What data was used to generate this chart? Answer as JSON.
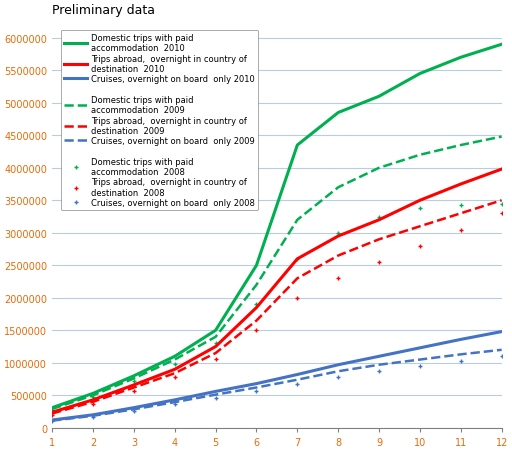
{
  "title": "Preliminary data",
  "x": [
    1,
    2,
    3,
    4,
    5,
    6,
    7,
    8,
    9,
    10,
    11,
    12
  ],
  "green_solid": [
    310000,
    530000,
    800000,
    1100000,
    1500000,
    2500000,
    4350000,
    4850000,
    5100000,
    5450000,
    5700000,
    5900000
  ],
  "red_solid": [
    240000,
    430000,
    660000,
    900000,
    1250000,
    1850000,
    2600000,
    2950000,
    3200000,
    3500000,
    3750000,
    3980000
  ],
  "blue_solid": [
    120000,
    200000,
    310000,
    430000,
    560000,
    680000,
    820000,
    970000,
    1100000,
    1230000,
    1360000,
    1480000
  ],
  "green_dash": [
    290000,
    500000,
    760000,
    1050000,
    1400000,
    2200000,
    3200000,
    3700000,
    4000000,
    4200000,
    4350000,
    4480000
  ],
  "red_dash": [
    220000,
    400000,
    620000,
    840000,
    1150000,
    1650000,
    2300000,
    2650000,
    2900000,
    3100000,
    3300000,
    3500000
  ],
  "blue_dash": [
    110000,
    185000,
    285000,
    395000,
    510000,
    620000,
    740000,
    870000,
    970000,
    1050000,
    1130000,
    1200000
  ],
  "green_dot": [
    270000,
    470000,
    720000,
    980000,
    1300000,
    1900000,
    2600000,
    3000000,
    3250000,
    3380000,
    3420000,
    3450000
  ],
  "red_dot": [
    200000,
    370000,
    570000,
    780000,
    1060000,
    1500000,
    2000000,
    2300000,
    2550000,
    2800000,
    3050000,
    3300000
  ],
  "blue_dot": [
    100000,
    170000,
    260000,
    360000,
    465000,
    565000,
    670000,
    780000,
    870000,
    950000,
    1030000,
    1110000
  ],
  "ylim": [
    0,
    6250000
  ],
  "yticks": [
    0,
    500000,
    1000000,
    1500000,
    2000000,
    2500000,
    3000000,
    3500000,
    4000000,
    4500000,
    5000000,
    5500000,
    6000000
  ],
  "background_color": "#ffffff",
  "grid_color": "#b8cce4",
  "legend_labels_2010": [
    "Domestic trips with paid\naccommodation  2010",
    "Trips abroad,  overnight in country of\ndestination  2010",
    "Cruises, overnight on board  only 2010"
  ],
  "legend_labels_2009": [
    "Domestic trips with paid\naccommodation  2009",
    "Trips abroad,  overnight in country of\ndestination  2009",
    "Cruises, overnight on board  only 2009"
  ],
  "legend_labels_2008": [
    "Domestic trips with paid\naccommodation  2008",
    "Trips abroad,  overnight in country of\ndestination  2008",
    "Cruises, overnight on board  only 2008"
  ],
  "green_color": "#00b050",
  "red_color": "#ff0000",
  "blue_color": "#4472c4",
  "tick_label_color": "#e46c0a",
  "legend_text_color": "#000000"
}
